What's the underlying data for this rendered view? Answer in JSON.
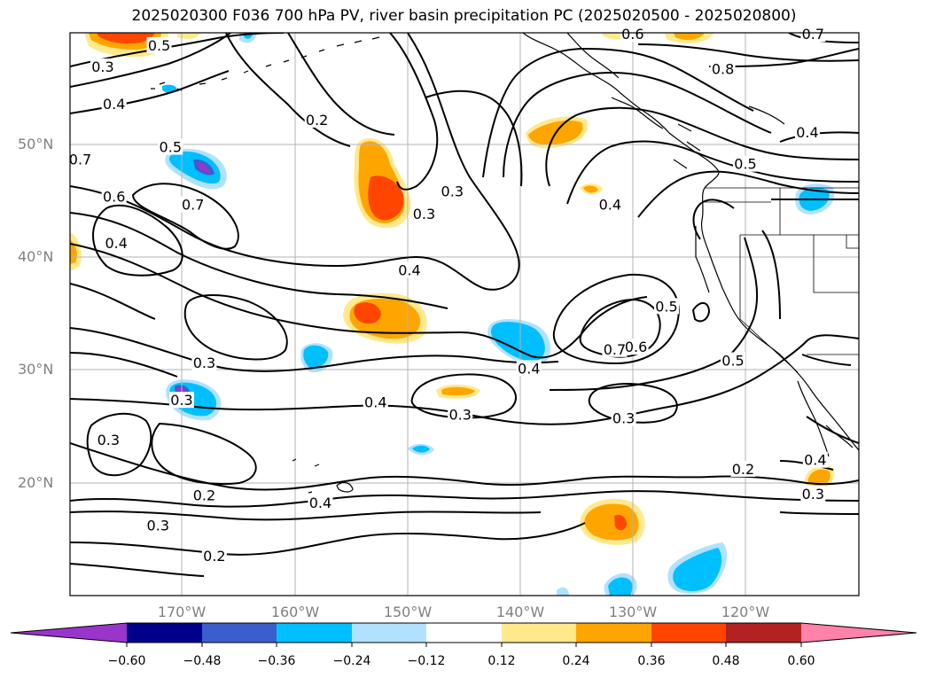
{
  "title": "2025020300 F036 700 hPa PV, river basin precipitation PC (2025020500 - 2025020800)",
  "lat_labels": [
    "50°N",
    "40°N",
    "30°N",
    "20°N"
  ],
  "lon_labels": [
    "170°W",
    "160°W",
    "150°W",
    "140°W",
    "130°W",
    "120°W"
  ],
  "colorbar": {
    "ticks": [
      "−0.60",
      "−0.48",
      "−0.36",
      "−0.24",
      "−0.12",
      "0.12",
      "0.24",
      "0.36",
      "0.48",
      "0.60"
    ],
    "colors": [
      "#9a35cc",
      "#00008b",
      "#3a5fcd",
      "#00bfff",
      "#b0e2ff",
      "#ffffff",
      "#ffe98c",
      "#ffa500",
      "#ff4500",
      "#b22222",
      "#ff82ab"
    ]
  },
  "contour_labels": [
    {
      "text": "0.5",
      "lon": -172,
      "lat": 58.8
    },
    {
      "text": "0.3",
      "lon": -177,
      "lat": 56.9
    },
    {
      "text": "0.4",
      "lon": -176,
      "lat": 53.6
    },
    {
      "text": "0.2",
      "lon": -158,
      "lat": 52.2
    },
    {
      "text": "0.7",
      "lon": -179,
      "lat": 48.7
    },
    {
      "text": "0.5",
      "lon": -171,
      "lat": 49.8
    },
    {
      "text": "0.6",
      "lon": -176,
      "lat": 45.4
    },
    {
      "text": "0.7",
      "lon": -169,
      "lat": 44.7
    },
    {
      "text": "0.4",
      "lon": -175.8,
      "lat": 41.3
    },
    {
      "text": "0.3",
      "lon": -146,
      "lat": 45.9
    },
    {
      "text": "0.3",
      "lon": -148.5,
      "lat": 43.9
    },
    {
      "text": "0.4",
      "lon": -149.8,
      "lat": 38.9
    },
    {
      "text": "0.4",
      "lon": -132,
      "lat": 44.7
    },
    {
      "text": "0.8",
      "lon": -122,
      "lat": 56.7
    },
    {
      "text": "0.5",
      "lon": -120,
      "lat": 48.3
    },
    {
      "text": "0.4",
      "lon": -114.5,
      "lat": 51.1
    },
    {
      "text": "0.5",
      "lon": -127,
      "lat": 35.7
    },
    {
      "text": "0.7",
      "lon": -131.6,
      "lat": 31.9
    },
    {
      "text": "0.6",
      "lon": -129.7,
      "lat": 32.1
    },
    {
      "text": "0.5",
      "lon": -121.1,
      "lat": 30.9
    },
    {
      "text": "0.4",
      "lon": -139.2,
      "lat": 30.2
    },
    {
      "text": "0.3",
      "lon": -168,
      "lat": 30.7
    },
    {
      "text": "0.3",
      "lon": -170,
      "lat": 27.4
    },
    {
      "text": "0.4",
      "lon": -152.8,
      "lat": 27.2
    },
    {
      "text": "0.3",
      "lon": -145.3,
      "lat": 26.1
    },
    {
      "text": "0.3",
      "lon": -130.8,
      "lat": 25.8
    },
    {
      "text": "0.3",
      "lon": -176.5,
      "lat": 23.9
    },
    {
      "text": "0.2",
      "lon": -120.2,
      "lat": 21.3
    },
    {
      "text": "0.4",
      "lon": -113.8,
      "lat": 22.1
    },
    {
      "text": "0.3",
      "lon": -114,
      "lat": 19.1
    },
    {
      "text": "0.2",
      "lon": -168,
      "lat": 19.0
    },
    {
      "text": "0.4",
      "lon": -157.7,
      "lat": 18.3
    },
    {
      "text": "0.3",
      "lon": -172.1,
      "lat": 16.3
    },
    {
      "text": "0.2",
      "lon": -167.1,
      "lat": 13.6
    },
    {
      "text": "0.6",
      "lon": -130,
      "lat": 59.8
    },
    {
      "text": "0.7",
      "lon": -114,
      "lat": 59.8
    }
  ]
}
